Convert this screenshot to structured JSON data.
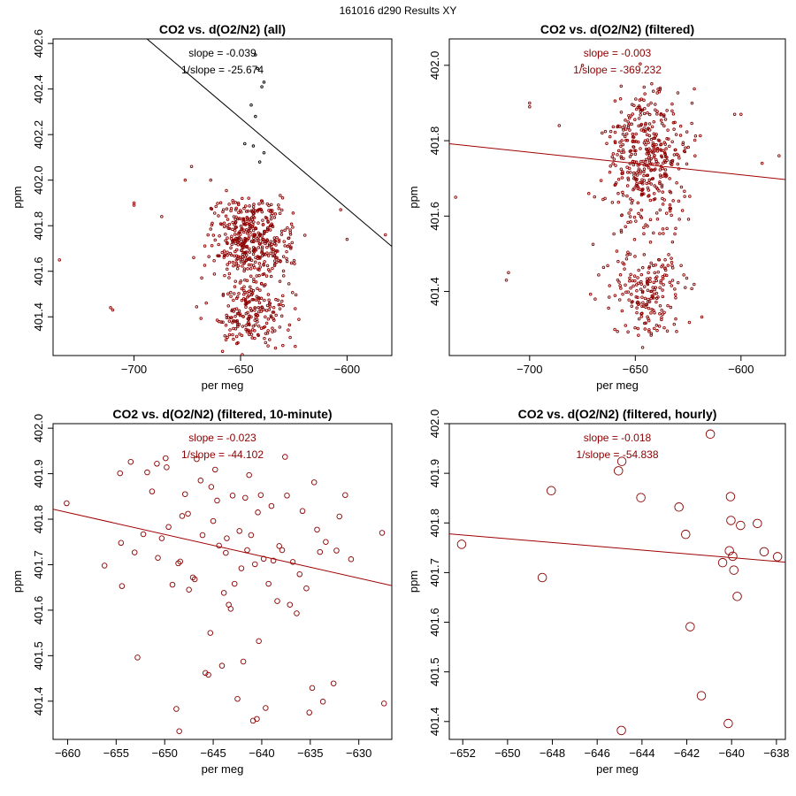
{
  "figure_title": "161016   d290   Results XY",
  "colors": {
    "points": "#8b0000",
    "fit_all": "#000000",
    "fit_filtered": "#a00000",
    "axis": "#000000"
  },
  "chart_data": [
    {
      "type": "scatter",
      "title": "CO2 vs. d(O2/N2) (all)",
      "xlabel": "per meg",
      "ylabel": "ppm",
      "xlim": [
        -738,
        -579
      ],
      "ylim": [
        401.23,
        402.62
      ],
      "xticks": [
        -700,
        -650,
        -600
      ],
      "yticks": [
        401.4,
        401.6,
        401.8,
        402.0,
        402.2,
        402.4,
        402.6
      ],
      "slope_text": "slope = -0.039",
      "inv_slope_text": "1/slope = -25.674",
      "annotation_color": "#000000",
      "fit_color": "#000000",
      "fit_line": [
        {
          "x": -730,
          "y": 402.906
        },
        {
          "x": -579,
          "y": 401.709
        }
      ],
      "scatter_cloud": {
        "seed": 11,
        "n": 640,
        "xcenter": -645,
        "xspread": 9,
        "clusters": [
          {
            "center": 401.75,
            "spread": 0.09,
            "weight": 0.62
          },
          {
            "center": 401.43,
            "spread": 0.08,
            "weight": 0.38
          }
        ],
        "marker_r": 1.3,
        "color": "#8b0000"
      },
      "outliers": [
        {
          "x": -735,
          "y": 401.65,
          "color": "#8b0000"
        },
        {
          "x": -711,
          "y": 401.44,
          "color": "#8b0000"
        },
        {
          "x": -710,
          "y": 401.43,
          "color": "#8b0000"
        },
        {
          "x": -700,
          "y": 401.89,
          "color": "#8b0000"
        },
        {
          "x": -700,
          "y": 401.9,
          "color": "#8b0000"
        },
        {
          "x": -687,
          "y": 401.84,
          "color": "#8b0000"
        },
        {
          "x": -676,
          "y": 402.0,
          "color": "#8b0000"
        },
        {
          "x": -673,
          "y": 402.06,
          "color": "#8b0000"
        },
        {
          "x": -672,
          "y": 401.66,
          "color": "#8b0000"
        },
        {
          "x": -664,
          "y": 402.0,
          "color": "#8b0000"
        },
        {
          "x": -603,
          "y": 401.87,
          "color": "#8b0000"
        },
        {
          "x": -600,
          "y": 401.74,
          "color": "#8b0000"
        },
        {
          "x": -582,
          "y": 401.76,
          "color": "#8b0000"
        },
        {
          "x": -643,
          "y": 402.55,
          "color": "#000000"
        },
        {
          "x": -642,
          "y": 402.49,
          "color": "#000000"
        },
        {
          "x": -639,
          "y": 402.43,
          "color": "#000000"
        },
        {
          "x": -640,
          "y": 402.41,
          "color": "#000000"
        },
        {
          "x": -645,
          "y": 402.33,
          "color": "#000000"
        },
        {
          "x": -643,
          "y": 402.28,
          "color": "#000000"
        },
        {
          "x": -648,
          "y": 402.16,
          "color": "#000000"
        },
        {
          "x": -644,
          "y": 402.15,
          "color": "#000000"
        },
        {
          "x": -639,
          "y": 402.12,
          "color": "#000000"
        },
        {
          "x": -641,
          "y": 402.08,
          "color": "#000000"
        }
      ]
    },
    {
      "type": "scatter",
      "title": "CO2 vs. d(O2/N2) (filtered)",
      "xlabel": "per meg",
      "ylabel": "ppm",
      "xlim": [
        -738,
        -579
      ],
      "ylim": [
        401.23,
        402.07
      ],
      "xticks": [
        -700,
        -650,
        -600
      ],
      "yticks": [
        401.4,
        401.6,
        401.8,
        402.0
      ],
      "slope_text": "slope = -0.003",
      "inv_slope_text": "1/slope = -369.232",
      "annotation_color": "#8b0000",
      "fit_color": "#a00000",
      "fit_line": [
        {
          "x": -738,
          "y": 401.792
        },
        {
          "x": -579,
          "y": 401.697
        }
      ],
      "scatter_cloud": {
        "seed": 23,
        "n": 620,
        "xcenter": -645,
        "xspread": 9,
        "clusters": [
          {
            "center": 401.75,
            "spread": 0.09,
            "weight": 0.66
          },
          {
            "center": 401.4,
            "spread": 0.07,
            "weight": 0.34
          }
        ],
        "marker_r": 1.3,
        "color": "#8b0000"
      },
      "outliers": [
        {
          "x": -735,
          "y": 401.65,
          "color": "#8b0000"
        },
        {
          "x": -711,
          "y": 401.43,
          "color": "#8b0000"
        },
        {
          "x": -710,
          "y": 401.45,
          "color": "#8b0000"
        },
        {
          "x": -700,
          "y": 401.9,
          "color": "#8b0000"
        },
        {
          "x": -700,
          "y": 401.89,
          "color": "#8b0000"
        },
        {
          "x": -686,
          "y": 401.84,
          "color": "#8b0000"
        },
        {
          "x": -675,
          "y": 402.0,
          "color": "#8b0000"
        },
        {
          "x": -672,
          "y": 401.66,
          "color": "#8b0000"
        },
        {
          "x": -669,
          "y": 401.38,
          "color": "#8b0000"
        },
        {
          "x": -603,
          "y": 401.87,
          "color": "#8b0000"
        },
        {
          "x": -600,
          "y": 401.87,
          "color": "#8b0000"
        },
        {
          "x": -590,
          "y": 401.74,
          "color": "#8b0000"
        },
        {
          "x": -582,
          "y": 401.76,
          "color": "#8b0000"
        }
      ]
    },
    {
      "type": "scatter",
      "title": "CO2 vs. d(O2/N2) (filtered, 10-minute)",
      "xlabel": "per meg",
      "ylabel": "ppm",
      "xlim": [
        -661.5,
        -626.6
      ],
      "ylim": [
        401.316,
        402.01
      ],
      "xticks": [
        -660,
        -655,
        -650,
        -645,
        -640,
        -635,
        -630
      ],
      "yticks": [
        401.4,
        401.5,
        401.6,
        401.7,
        401.8,
        401.9,
        402.0
      ],
      "slope_text": "slope = -0.023",
      "inv_slope_text": "1/slope = -44.102",
      "annotation_color": "#8b0000",
      "fit_color": "#a00000",
      "fit_line": [
        {
          "x": -661.5,
          "y": 401.822
        },
        {
          "x": -626.6,
          "y": 401.654
        }
      ],
      "marker_r": 2.8,
      "points": [
        {
          "x": -660.1,
          "y": 401.835
        },
        {
          "x": -656.2,
          "y": 401.698
        },
        {
          "x": -654.6,
          "y": 401.901
        },
        {
          "x": -654.5,
          "y": 401.748
        },
        {
          "x": -654.4,
          "y": 401.653
        },
        {
          "x": -653.5,
          "y": 401.926
        },
        {
          "x": -653.1,
          "y": 401.727
        },
        {
          "x": -652.8,
          "y": 401.496
        },
        {
          "x": -652.2,
          "y": 401.767
        },
        {
          "x": -651.8,
          "y": 401.903
        },
        {
          "x": -651.3,
          "y": 401.861
        },
        {
          "x": -650.8,
          "y": 401.922
        },
        {
          "x": -650.7,
          "y": 401.715
        },
        {
          "x": -650.3,
          "y": 401.758
        },
        {
          "x": -649.9,
          "y": 401.934
        },
        {
          "x": -649.8,
          "y": 401.914
        },
        {
          "x": -649.6,
          "y": 401.783
        },
        {
          "x": -649.2,
          "y": 401.656
        },
        {
          "x": -648.8,
          "y": 401.383
        },
        {
          "x": -648.6,
          "y": 401.703
        },
        {
          "x": -648.5,
          "y": 401.334
        },
        {
          "x": -648.4,
          "y": 401.707
        },
        {
          "x": -648.2,
          "y": 401.807
        },
        {
          "x": -647.9,
          "y": 401.855
        },
        {
          "x": -647.6,
          "y": 401.812
        },
        {
          "x": -647.5,
          "y": 401.645
        },
        {
          "x": -647.1,
          "y": 401.672
        },
        {
          "x": -646.9,
          "y": 401.668
        },
        {
          "x": -646.7,
          "y": 401.932
        },
        {
          "x": -646.3,
          "y": 401.885
        },
        {
          "x": -646.1,
          "y": 401.765
        },
        {
          "x": -645.8,
          "y": 401.462
        },
        {
          "x": -645.5,
          "y": 401.458
        },
        {
          "x": -645.3,
          "y": 401.55
        },
        {
          "x": -645.2,
          "y": 401.871
        },
        {
          "x": -645.0,
          "y": 401.796
        },
        {
          "x": -644.8,
          "y": 401.909
        },
        {
          "x": -644.6,
          "y": 401.841
        },
        {
          "x": -644.4,
          "y": 401.742
        },
        {
          "x": -644.1,
          "y": 401.478
        },
        {
          "x": -643.9,
          "y": 401.638
        },
        {
          "x": -643.7,
          "y": 401.726
        },
        {
          "x": -643.6,
          "y": 401.758
        },
        {
          "x": -643.4,
          "y": 401.612
        },
        {
          "x": -643.2,
          "y": 401.603
        },
        {
          "x": -643.0,
          "y": 401.852
        },
        {
          "x": -642.8,
          "y": 401.658
        },
        {
          "x": -642.5,
          "y": 401.405
        },
        {
          "x": -642.3,
          "y": 401.774
        },
        {
          "x": -642.1,
          "y": 401.692
        },
        {
          "x": -641.9,
          "y": 401.487
        },
        {
          "x": -641.7,
          "y": 401.847
        },
        {
          "x": -641.5,
          "y": 401.732
        },
        {
          "x": -641.3,
          "y": 401.897
        },
        {
          "x": -641.1,
          "y": 401.765
        },
        {
          "x": -640.9,
          "y": 401.357
        },
        {
          "x": -640.7,
          "y": 401.701
        },
        {
          "x": -640.5,
          "y": 401.361
        },
        {
          "x": -640.4,
          "y": 401.815
        },
        {
          "x": -640.3,
          "y": 401.532
        },
        {
          "x": -640.1,
          "y": 401.853
        },
        {
          "x": -639.8,
          "y": 401.713
        },
        {
          "x": -639.6,
          "y": 401.385
        },
        {
          "x": -639.3,
          "y": 401.658
        },
        {
          "x": -639.0,
          "y": 401.829
        },
        {
          "x": -638.8,
          "y": 401.709
        },
        {
          "x": -638.4,
          "y": 401.62
        },
        {
          "x": -638.2,
          "y": 401.741
        },
        {
          "x": -637.9,
          "y": 401.732
        },
        {
          "x": -637.6,
          "y": 401.937
        },
        {
          "x": -637.4,
          "y": 401.852
        },
        {
          "x": -637.1,
          "y": 401.612
        },
        {
          "x": -636.8,
          "y": 401.706
        },
        {
          "x": -636.4,
          "y": 401.593
        },
        {
          "x": -636.1,
          "y": 401.679
        },
        {
          "x": -635.8,
          "y": 401.818
        },
        {
          "x": -635.4,
          "y": 401.648
        },
        {
          "x": -635.1,
          "y": 401.375
        },
        {
          "x": -634.8,
          "y": 401.429
        },
        {
          "x": -634.6,
          "y": 401.881
        },
        {
          "x": -634.3,
          "y": 401.777
        },
        {
          "x": -634.0,
          "y": 401.728
        },
        {
          "x": -633.7,
          "y": 401.399
        },
        {
          "x": -633.4,
          "y": 401.75
        },
        {
          "x": -632.6,
          "y": 401.439
        },
        {
          "x": -632.3,
          "y": 401.731
        },
        {
          "x": -632.0,
          "y": 401.806
        },
        {
          "x": -631.4,
          "y": 401.853
        },
        {
          "x": -630.8,
          "y": 401.712
        },
        {
          "x": -627.6,
          "y": 401.77
        },
        {
          "x": -627.4,
          "y": 401.395
        }
      ]
    },
    {
      "type": "scatter",
      "title": "CO2 vs. d(O2/N2) (filtered, hourly)",
      "xlabel": "per meg",
      "ylabel": "ppm",
      "xlim": [
        -652.6,
        -637.6
      ],
      "ylim": [
        401.364,
        402.0
      ],
      "xticks": [
        -652,
        -650,
        -648,
        -646,
        -644,
        -642,
        -640,
        -638
      ],
      "yticks": [
        401.4,
        401.5,
        401.6,
        401.7,
        401.8,
        401.9,
        402.0
      ],
      "slope_text": "slope = -0.018",
      "inv_slope_text": "1/slope = -54.838",
      "annotation_color": "#8b0000",
      "fit_color": "#a00000",
      "fit_line": [
        {
          "x": -652.6,
          "y": 401.778
        },
        {
          "x": -637.6,
          "y": 401.721
        }
      ],
      "marker_r": 4.8,
      "points": [
        {
          "x": -652.05,
          "y": 401.757
        },
        {
          "x": -648.45,
          "y": 401.69
        },
        {
          "x": -648.05,
          "y": 401.865
        },
        {
          "x": -645.05,
          "y": 401.905
        },
        {
          "x": -644.9,
          "y": 401.924
        },
        {
          "x": -644.92,
          "y": 401.382
        },
        {
          "x": -644.05,
          "y": 401.851
        },
        {
          "x": -642.35,
          "y": 401.832
        },
        {
          "x": -642.05,
          "y": 401.777
        },
        {
          "x": -641.85,
          "y": 401.591
        },
        {
          "x": -641.35,
          "y": 401.452
        },
        {
          "x": -640.95,
          "y": 401.979
        },
        {
          "x": -640.4,
          "y": 401.72
        },
        {
          "x": -640.15,
          "y": 401.396
        },
        {
          "x": -640.1,
          "y": 401.744
        },
        {
          "x": -640.05,
          "y": 401.853
        },
        {
          "x": -640.03,
          "y": 401.805
        },
        {
          "x": -639.95,
          "y": 401.733
        },
        {
          "x": -639.9,
          "y": 401.705
        },
        {
          "x": -639.75,
          "y": 401.652
        },
        {
          "x": -639.6,
          "y": 401.795
        },
        {
          "x": -638.85,
          "y": 401.799
        },
        {
          "x": -638.55,
          "y": 401.742
        },
        {
          "x": -637.95,
          "y": 401.732
        }
      ]
    }
  ]
}
